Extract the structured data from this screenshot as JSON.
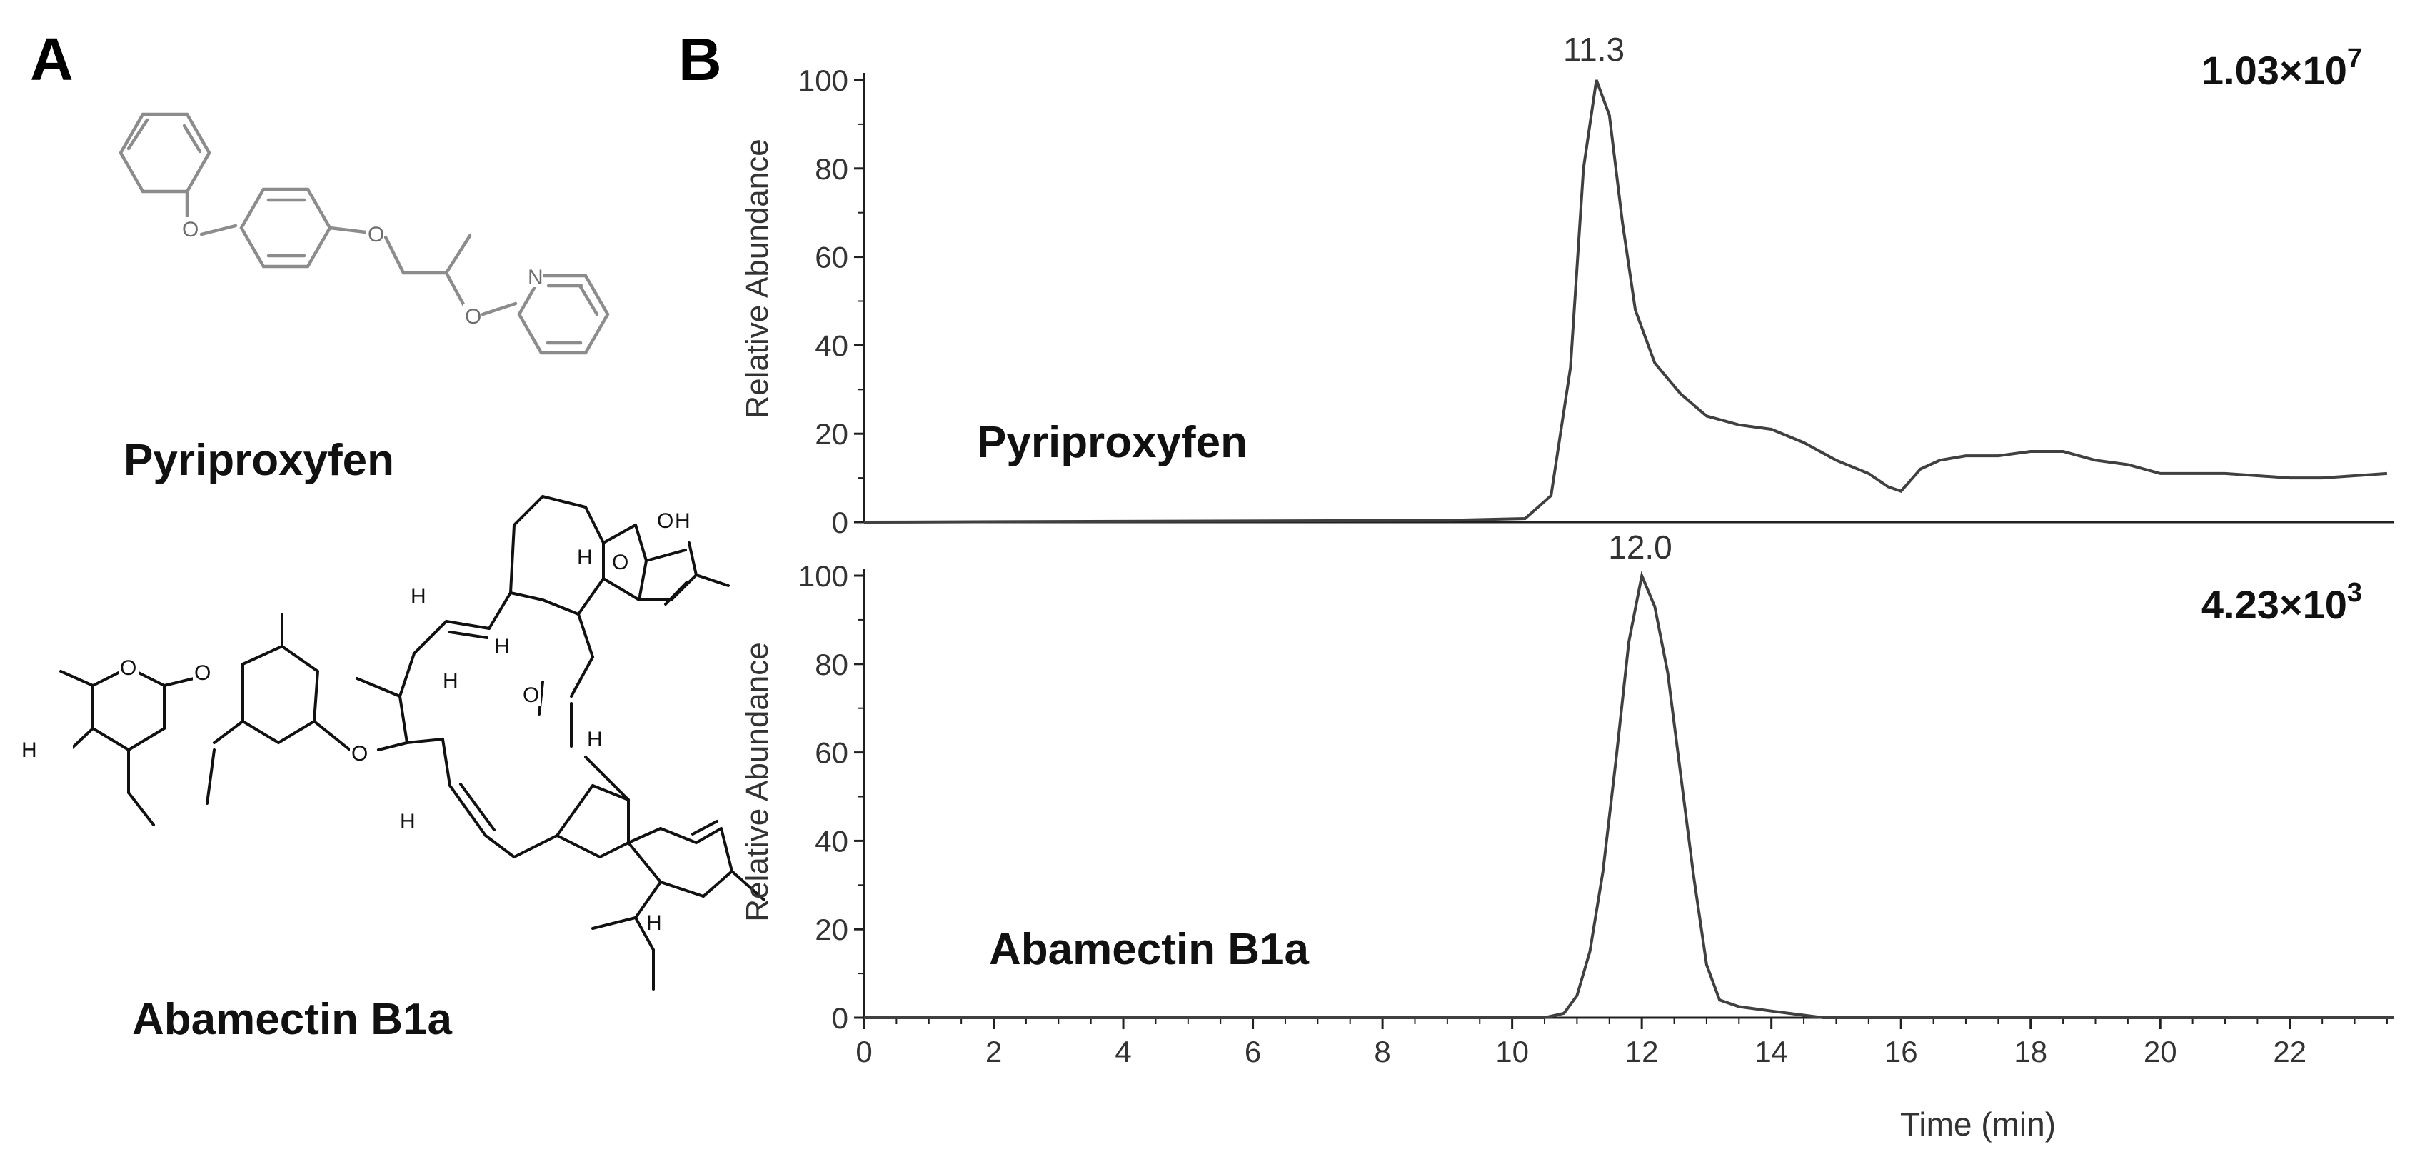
{
  "panels": {
    "a_label": "A",
    "b_label": "B"
  },
  "structures": [
    {
      "name": "Pyriproxyfen",
      "atom_labels": [
        "O",
        "O",
        "O",
        "N"
      ]
    },
    {
      "name": "Abamectin B1a",
      "atom_labels": [
        "O",
        "H",
        "H",
        "O",
        "H",
        "H",
        "O",
        "H",
        "H",
        "H",
        "H",
        "O",
        "O",
        "O",
        "H"
      ]
    }
  ],
  "colors": {
    "trace": "#404040",
    "axis": "#202020",
    "text": "#111111",
    "structure": "#8c8c8c"
  },
  "chart_data": [
    {
      "type": "line",
      "series": [
        {
          "name": "Pyriproxyfen",
          "values": [
            [
              0,
              0
            ],
            [
              9,
              0.4
            ],
            [
              10.2,
              0.8
            ],
            [
              10.6,
              6
            ],
            [
              10.9,
              35
            ],
            [
              11.1,
              80
            ],
            [
              11.3,
              100
            ],
            [
              11.5,
              92
            ],
            [
              11.7,
              68
            ],
            [
              11.9,
              48
            ],
            [
              12.2,
              36
            ],
            [
              12.6,
              29
            ],
            [
              13.0,
              24
            ],
            [
              13.5,
              22
            ],
            [
              14.0,
              21
            ],
            [
              14.5,
              18
            ],
            [
              15.0,
              14
            ],
            [
              15.5,
              11
            ],
            [
              15.8,
              8
            ],
            [
              16.0,
              7
            ],
            [
              16.3,
              12
            ],
            [
              16.6,
              14
            ],
            [
              17.0,
              15
            ],
            [
              17.5,
              15
            ],
            [
              18.0,
              16
            ],
            [
              18.5,
              16
            ],
            [
              19.0,
              14
            ],
            [
              19.5,
              13
            ],
            [
              20.0,
              11
            ],
            [
              20.5,
              11
            ],
            [
              21.0,
              11
            ],
            [
              22.0,
              10
            ],
            [
              22.5,
              10
            ],
            [
              23.5,
              11
            ]
          ]
        }
      ],
      "peak_label": "11.3",
      "intensity_label": {
        "base": "1.03×10",
        "exp": "7"
      },
      "ylabel": "Relative Abundance",
      "yticks": [
        "0",
        "20",
        "40",
        "60",
        "80",
        "100"
      ],
      "xlim": [
        0,
        23.6
      ],
      "ylim": [
        0,
        100
      ]
    },
    {
      "type": "line",
      "series": [
        {
          "name": "Abamectin B1a",
          "values": [
            [
              0,
              0
            ],
            [
              10.5,
              0
            ],
            [
              10.8,
              1
            ],
            [
              11.0,
              5
            ],
            [
              11.2,
              15
            ],
            [
              11.4,
              33
            ],
            [
              11.6,
              58
            ],
            [
              11.8,
              85
            ],
            [
              12.0,
              100
            ],
            [
              12.2,
              93
            ],
            [
              12.4,
              78
            ],
            [
              12.6,
              55
            ],
            [
              12.8,
              32
            ],
            [
              13.0,
              12
            ],
            [
              13.2,
              4
            ],
            [
              13.5,
              2.5
            ],
            [
              14.0,
              1.5
            ],
            [
              14.8,
              0
            ],
            [
              23.6,
              0
            ]
          ]
        }
      ],
      "peak_label": "12.0",
      "intensity_label": {
        "base": "4.23×10",
        "exp": "3"
      },
      "ylabel": "Relative Abundance",
      "yticks": [
        "0",
        "20",
        "40",
        "60",
        "80",
        "100"
      ],
      "xticks": [
        "0",
        "2",
        "4",
        "6",
        "8",
        "10",
        "12",
        "14",
        "16",
        "18",
        "20",
        "22"
      ],
      "xlabel": "Time (min)",
      "xlim": [
        0,
        23.6
      ],
      "ylim": [
        0,
        100
      ]
    }
  ]
}
